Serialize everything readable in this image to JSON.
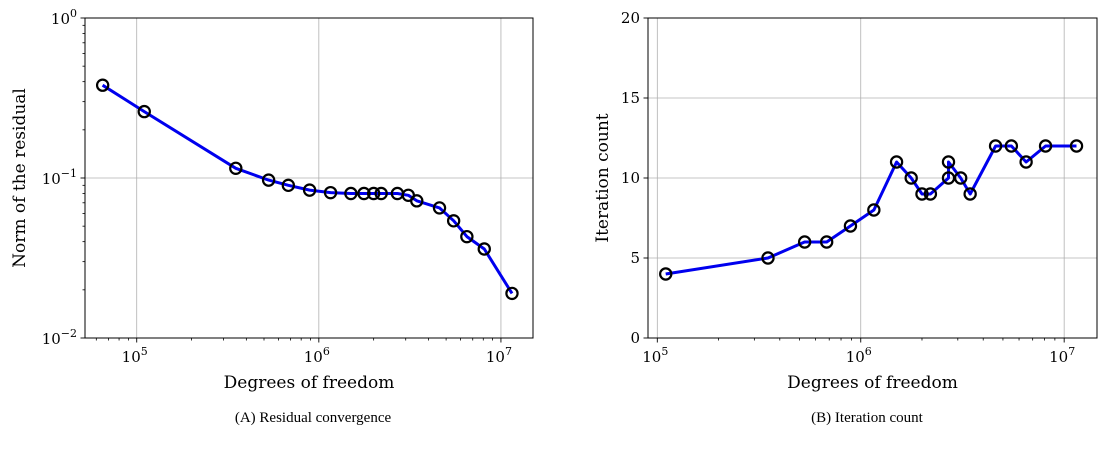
{
  "chart_data": [
    {
      "type": "line",
      "caption": "(A) Residual convergence",
      "xlabel": "Degrees of freedom",
      "ylabel": "Norm of the residual",
      "xscale": "log",
      "yscale": "log",
      "xlim": [
        52000,
        15000000
      ],
      "ylim": [
        0.01,
        1
      ],
      "xticks": [
        {
          "value": 100000,
          "base": "10",
          "exp": "5"
        },
        {
          "value": 1000000,
          "base": "10",
          "exp": "6"
        },
        {
          "value": 10000000,
          "base": "10",
          "exp": "7"
        }
      ],
      "yticks": [
        {
          "value": 0.01,
          "base": "10",
          "exp": "−2"
        },
        {
          "value": 0.1,
          "base": "10",
          "exp": "−1"
        },
        {
          "value": 1,
          "base": "10",
          "exp": "0"
        }
      ],
      "grid": true,
      "line_color": "#0000ee",
      "marker_color": "#000000",
      "series": [
        {
          "x": [
            65000,
            110000,
            350000,
            530000,
            680000,
            890000,
            1160000,
            1500000,
            1770000,
            2000000,
            2200000,
            2700000,
            3100000,
            3450000,
            4600000,
            5500000,
            6500000,
            8100000,
            11500000
          ],
          "values": [
            0.38,
            0.26,
            0.115,
            0.097,
            0.09,
            0.084,
            0.081,
            0.08,
            0.08,
            0.08,
            0.08,
            0.08,
            0.078,
            0.072,
            0.065,
            0.054,
            0.043,
            0.036,
            0.019
          ]
        }
      ]
    },
    {
      "type": "line",
      "caption": "(B) Iteration count",
      "xlabel": "Degrees of freedom",
      "ylabel": "Iteration count",
      "xscale": "log",
      "yscale": "linear",
      "xlim": [
        90000,
        14500000
      ],
      "ylim": [
        0,
        20
      ],
      "xticks": [
        {
          "value": 100000,
          "base": "10",
          "exp": "5"
        },
        {
          "value": 1000000,
          "base": "10",
          "exp": "6"
        },
        {
          "value": 10000000,
          "base": "10",
          "exp": "7"
        }
      ],
      "yticks": [
        {
          "value": 0,
          "label": "0"
        },
        {
          "value": 5,
          "label": "5"
        },
        {
          "value": 10,
          "label": "10"
        },
        {
          "value": 15,
          "label": "15"
        },
        {
          "value": 20,
          "label": "20"
        }
      ],
      "grid": true,
      "line_color": "#0000ee",
      "marker_color": "#000000",
      "series": [
        {
          "x": [
            110000,
            350000,
            530000,
            680000,
            890000,
            1160000,
            1500000,
            1770000,
            2000000,
            2200000,
            2700000,
            2700000,
            3100000,
            3450000,
            4600000,
            5500000,
            6500000,
            8100000,
            11500000
          ],
          "values": [
            4,
            5,
            6,
            6,
            7,
            8,
            11,
            10,
            9,
            9,
            10,
            11,
            10,
            9,
            12,
            12,
            11,
            12,
            12
          ]
        }
      ]
    }
  ]
}
